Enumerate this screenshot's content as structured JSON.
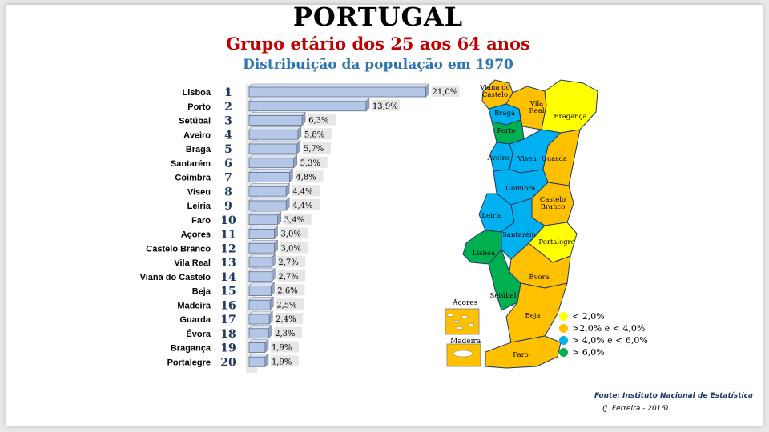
{
  "header": {
    "title": "PORTUGAL",
    "subtitle": "Grupo etário dos 25 aos 64 anos",
    "subtitle2": "Distribuição da população em 1970"
  },
  "chart_data": {
    "type": "bar",
    "orientation": "horizontal",
    "categories": [
      "Lisboa",
      "Porto",
      "Setúbal",
      "Aveiro",
      "Braga",
      "Santarém",
      "Coimbra",
      "Viseu",
      "Leiria",
      "Faro",
      "Açores",
      "Castelo Branco",
      "Vila Real",
      "Viana do Castelo",
      "Beja",
      "Madeira",
      "Guarda",
      "Évora",
      "Bragança",
      "Portalegre"
    ],
    "ranks": [
      "1",
      "2",
      "3",
      "4",
      "5",
      "6",
      "7",
      "8",
      "9",
      "10",
      "11",
      "12",
      "13",
      "14",
      "15",
      "16",
      "17",
      "18",
      "19",
      "20"
    ],
    "values": [
      21.0,
      13.9,
      6.3,
      5.8,
      5.7,
      5.3,
      4.8,
      4.4,
      4.4,
      3.4,
      3.0,
      3.0,
      2.7,
      2.7,
      2.6,
      2.5,
      2.4,
      2.3,
      1.9,
      1.9
    ],
    "value_labels": [
      "21,0%",
      "13,9%",
      "6,3%",
      "5,8%",
      "5,7%",
      "5,3%",
      "4,8%",
      "4,4%",
      "4,4%",
      "3,4%",
      "3,0%",
      "3,0%",
      "2,7%",
      "2,7%",
      "2,6%",
      "2,5%",
      "2,4%",
      "2,3%",
      "1,9%",
      "1,9%"
    ],
    "bar_color": "#b4c7e7",
    "xlim": [
      0,
      21
    ]
  },
  "map": {
    "districts": [
      {
        "name": "Viana do Castelo",
        "lines": [
          "Viana do",
          "Castelo"
        ],
        "class": "orange"
      },
      {
        "name": "Braga",
        "lines": [
          "Braga"
        ],
        "class": "blue"
      },
      {
        "name": "Vila Real",
        "lines": [
          "Vila",
          "Real"
        ],
        "class": "orange"
      },
      {
        "name": "Bragança",
        "lines": [
          "Bragança"
        ],
        "class": "yellow"
      },
      {
        "name": "Porto",
        "lines": [
          "Porto"
        ],
        "class": "green"
      },
      {
        "name": "Aveiro",
        "lines": [
          "Aveiro"
        ],
        "class": "blue"
      },
      {
        "name": "Viseu",
        "lines": [
          "Viseu"
        ],
        "class": "blue"
      },
      {
        "name": "Guarda",
        "lines": [
          "Guarda"
        ],
        "class": "orange"
      },
      {
        "name": "Coimbra",
        "lines": [
          "Coimbra"
        ],
        "class": "blue"
      },
      {
        "name": "Castelo Branco",
        "lines": [
          "Castelo",
          "Branco"
        ],
        "class": "orange"
      },
      {
        "name": "Leiria",
        "lines": [
          "Leiria"
        ],
        "class": "blue"
      },
      {
        "name": "Santarém",
        "lines": [
          "Santarém"
        ],
        "class": "blue"
      },
      {
        "name": "Portalegre",
        "lines": [
          "Portalegre"
        ],
        "class": "yellow"
      },
      {
        "name": "Lisboa",
        "lines": [
          "Lisboa"
        ],
        "class": "green"
      },
      {
        "name": "Évora",
        "lines": [
          "Évora"
        ],
        "class": "orange"
      },
      {
        "name": "Setúbal",
        "lines": [
          "Setúbal"
        ],
        "class": "green"
      },
      {
        "name": "Beja",
        "lines": [
          "Beja"
        ],
        "class": "orange"
      },
      {
        "name": "Faro",
        "lines": [
          "Faro"
        ],
        "class": "orange"
      }
    ],
    "inset_acores": "Açores",
    "inset_madeira": "Madeira",
    "colors": {
      "yellow": "#ffff00",
      "orange": "#ffc000",
      "blue": "#00b0f0",
      "green": "#00b050"
    }
  },
  "legend": [
    {
      "label": "< 2,0%",
      "class": "yellow"
    },
    {
      "label": ">2,0%  e < 4,0%",
      "class": "orange"
    },
    {
      "label": "> 4,0%  e < 6,0%",
      "class": "blue"
    },
    {
      "label": "> 6,0%",
      "class": "green"
    }
  ],
  "footer": {
    "source": "Fonte: Instituto Nacional de Estatística",
    "author": "(J. Ferreira - 2016)"
  }
}
